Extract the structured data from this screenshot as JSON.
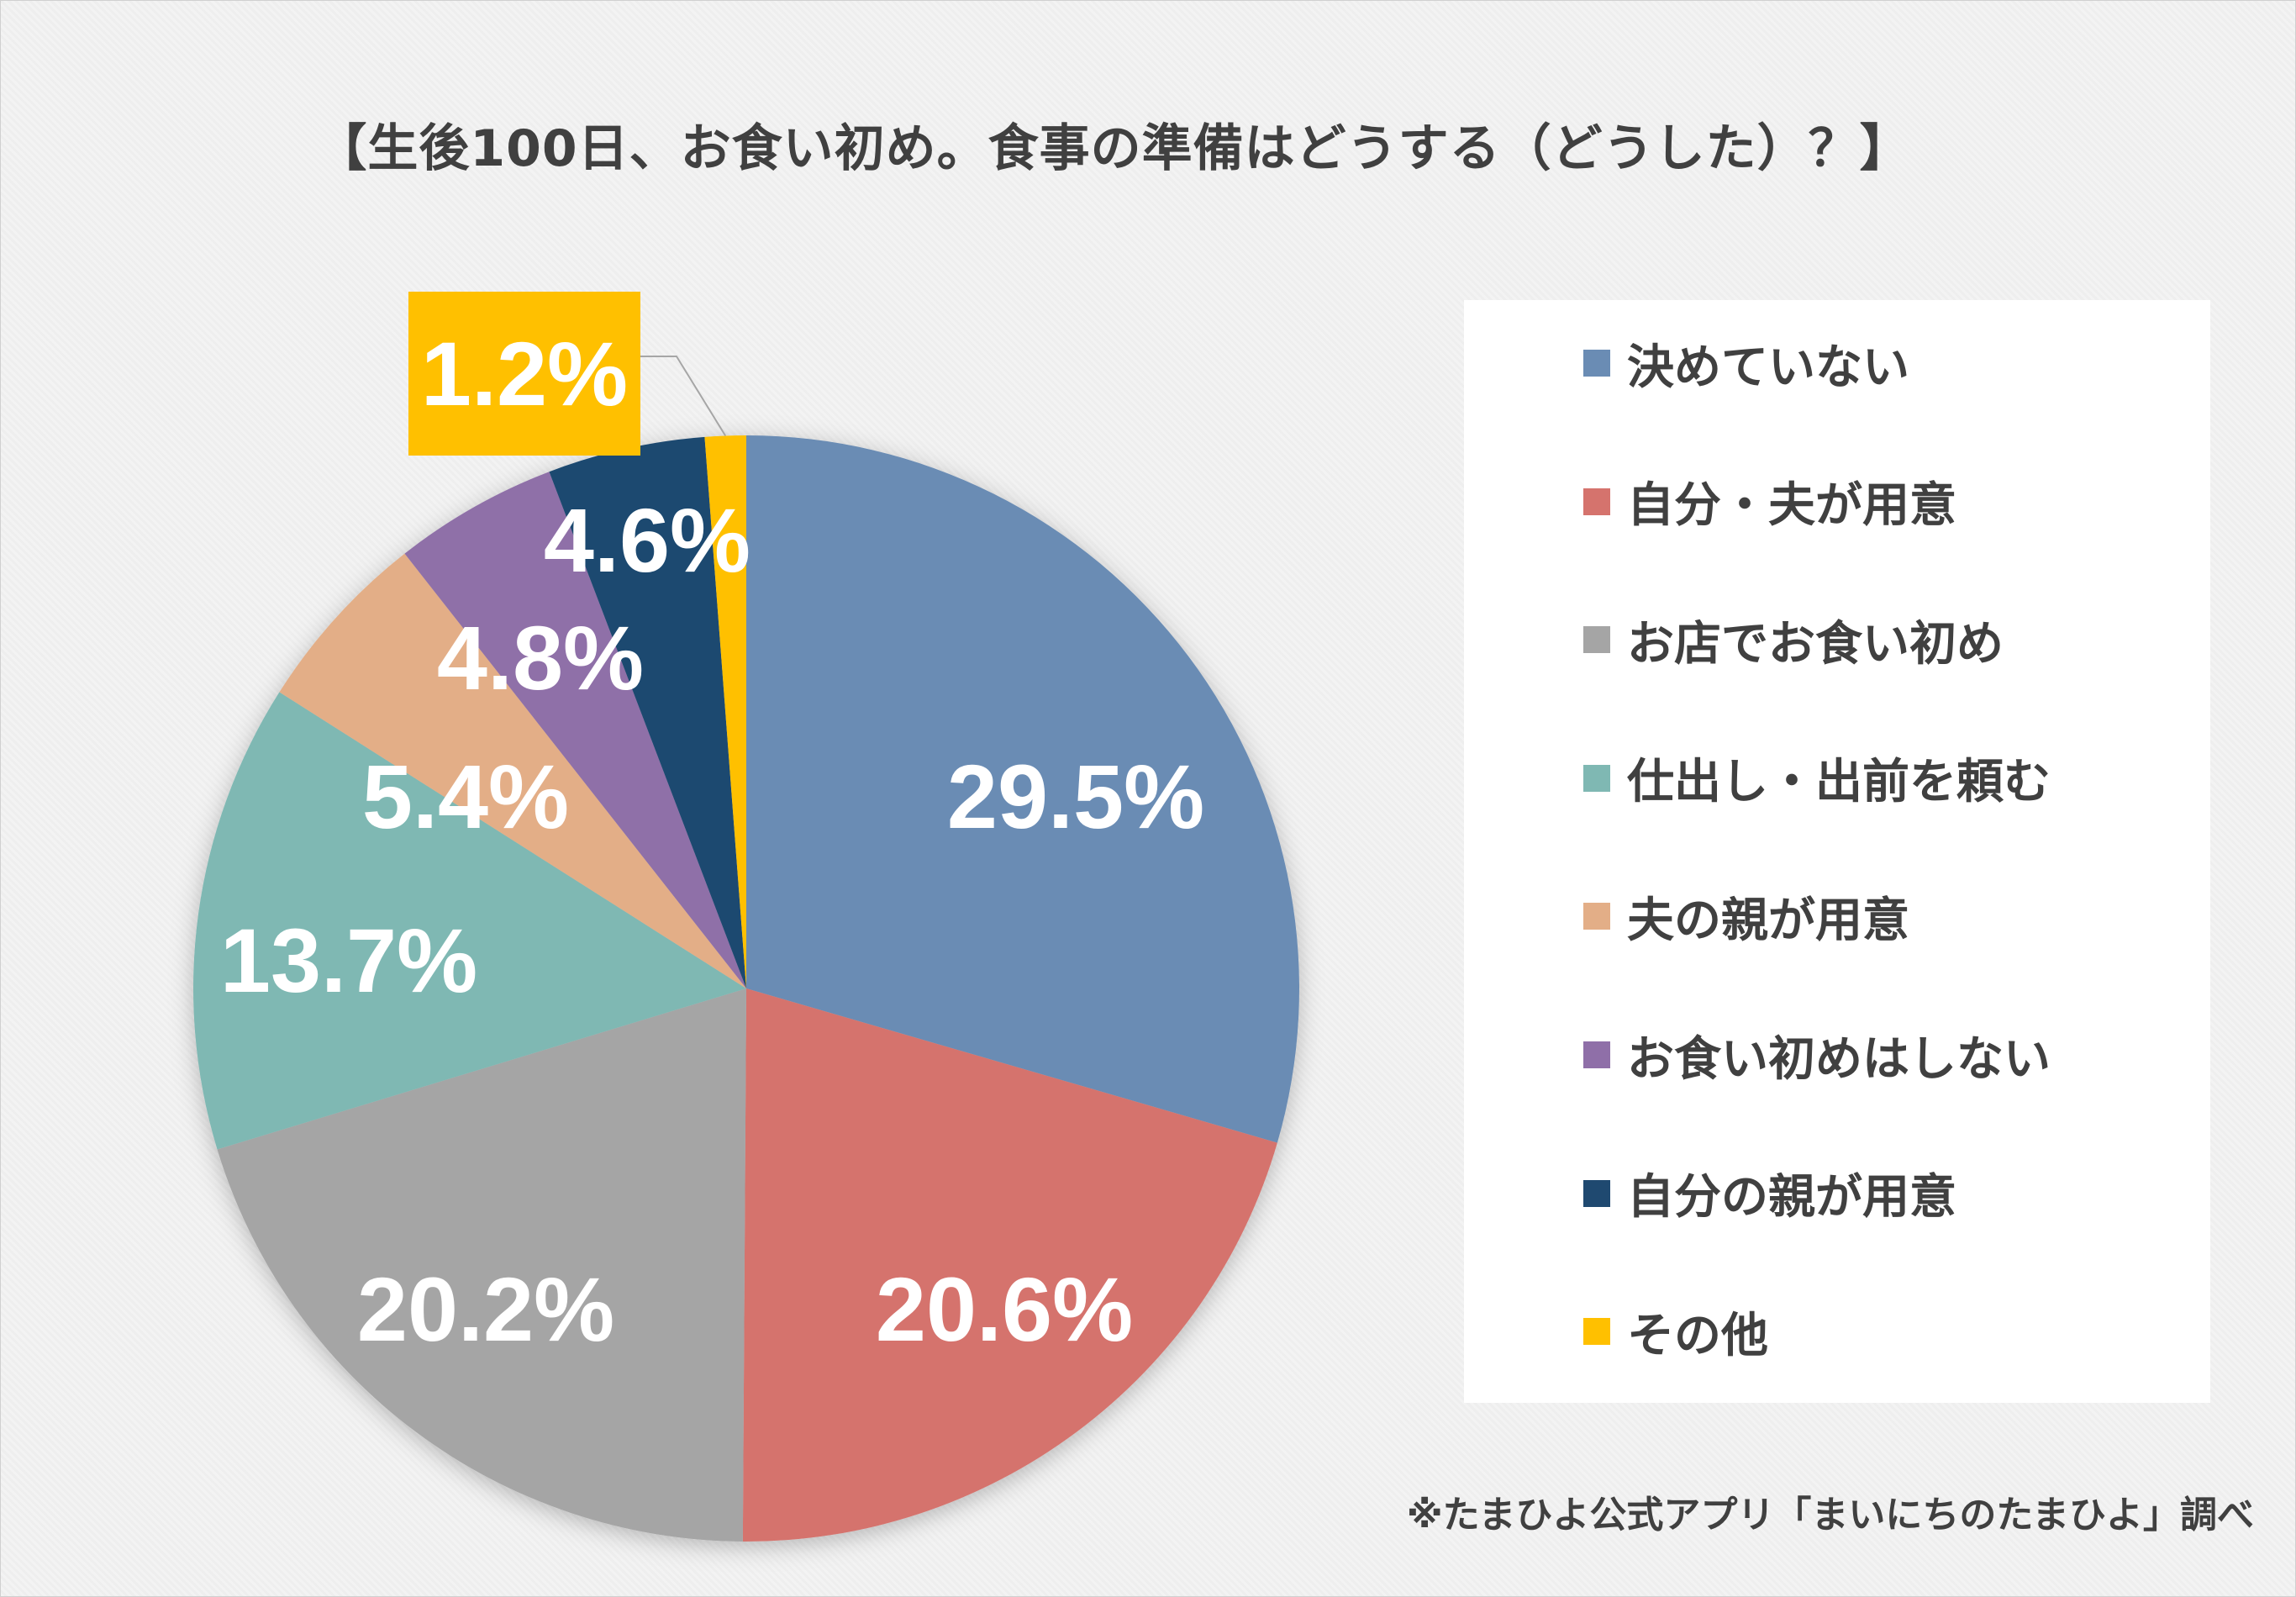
{
  "chart_data": {
    "type": "pie",
    "title": "【生後100日、お食い初め。食事の準備はどうする（どうした）？】",
    "categories": [
      "決めていない",
      "自分・夫が用意",
      "お店でお食い初め",
      "仕出し・出前を頼む",
      "夫の親が用意",
      "お食い初めはしない",
      "自分の親が用意",
      "その他"
    ],
    "values": [
      29.5,
      20.6,
      20.2,
      13.7,
      5.4,
      4.8,
      4.6,
      1.2
    ],
    "labels": [
      "29.5%",
      "20.6%",
      "20.2%",
      "13.7%",
      "5.4%",
      "4.8%",
      "4.6%",
      "1.2%"
    ],
    "colors": [
      "#6a8cb4",
      "#d5736d",
      "#a5a5a5",
      "#7fb8b3",
      "#e3ae87",
      "#8f6fa8",
      "#1f4970",
      "#ffc000"
    ],
    "legend_position": "right",
    "start": "top, clockwise"
  },
  "footer": "※たまひよ公式アプリ「まいにちのたまひよ」調べ"
}
